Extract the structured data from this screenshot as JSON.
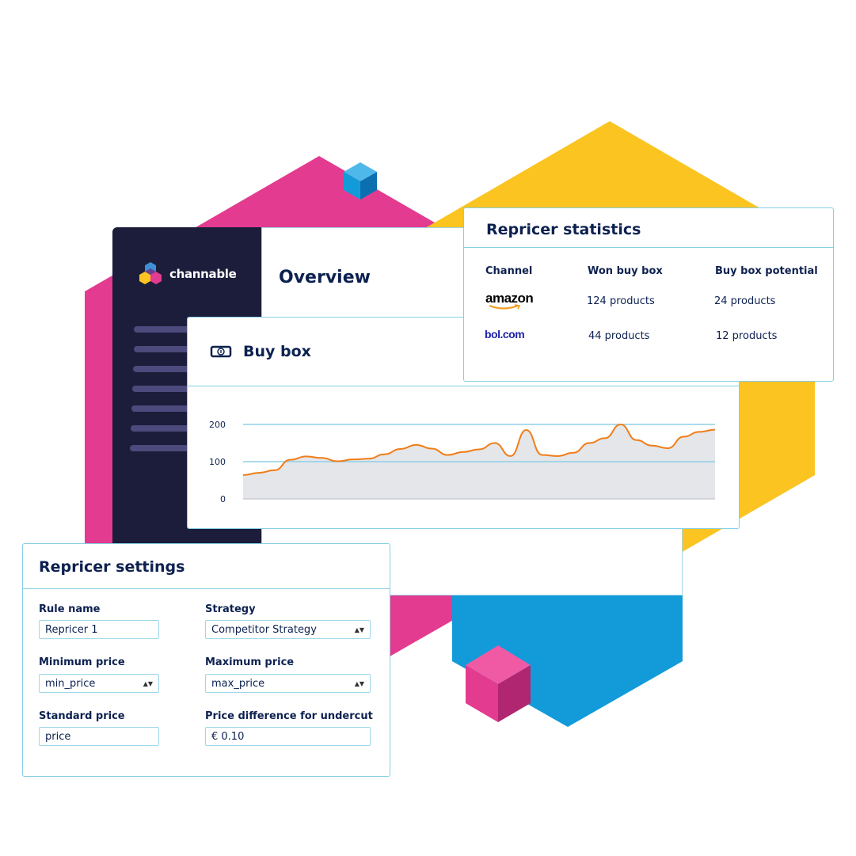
{
  "colors": {
    "pink": "#e33b8f",
    "yellow": "#fbc421",
    "blue": "#139bd9",
    "navy": "#1b1d3a",
    "accent_line": "#f07d18"
  },
  "sidebar": {
    "logo_text": "channable",
    "nav_items": 7
  },
  "overview": {
    "title": "Overview"
  },
  "buy_box": {
    "title": "Buy box",
    "icon": "banknote-icon"
  },
  "chart_data": {
    "type": "area",
    "title": "",
    "xlabel": "",
    "ylabel": "",
    "ylim": [
      0,
      200
    ],
    "yticks": [
      "0",
      "100",
      "200"
    ],
    "grid": true,
    "values": [
      64,
      70,
      77,
      105,
      114,
      110,
      101,
      106,
      108,
      120,
      134,
      145,
      135,
      118,
      126,
      133,
      150,
      115,
      185,
      118,
      115,
      124,
      150,
      163,
      200,
      158,
      143,
      136,
      167,
      180,
      186
    ]
  },
  "stats": {
    "title": "Repricer statistics",
    "headers": [
      "Channel",
      "Won buy box",
      "Buy box potential"
    ],
    "rows": [
      {
        "channel": "amazon",
        "won": "124 products",
        "potential": "24 products"
      },
      {
        "channel": "bol.com",
        "won": "44 products",
        "potential": "12 products"
      }
    ]
  },
  "settings": {
    "title": "Repricer settings",
    "fields": [
      {
        "label": "Rule name",
        "value": "Repricer 1",
        "type": "text"
      },
      {
        "label": "Strategy",
        "value": "Competitor Strategy",
        "type": "select"
      },
      {
        "label": "Minimum price",
        "value": "min_price",
        "type": "select"
      },
      {
        "label": "Maximum price",
        "value": "max_price",
        "type": "select"
      },
      {
        "label": "Standard price",
        "value": "price",
        "type": "text"
      },
      {
        "label": "Price difference for undercut",
        "value": "€ 0.10",
        "type": "text"
      }
    ]
  }
}
